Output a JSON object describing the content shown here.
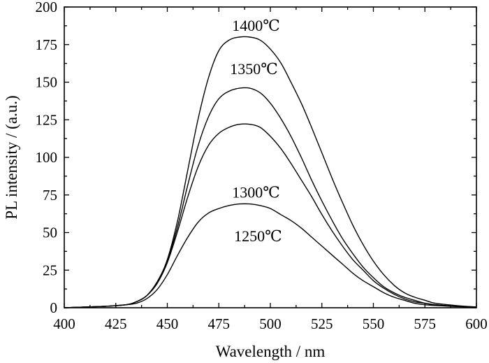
{
  "chart_data": {
    "type": "line",
    "xlabel": "Wavelength / nm",
    "ylabel": "PL intensity / (a.u.)",
    "xlim": [
      400,
      600
    ],
    "ylim": [
      0,
      200
    ],
    "xticks": [
      "400",
      "425",
      "450",
      "475",
      "500",
      "525",
      "550",
      "575",
      "600"
    ],
    "yticks": [
      "0",
      "25",
      "50",
      "75",
      "100",
      "125",
      "150",
      "175",
      "200"
    ],
    "x": [
      400,
      420,
      430,
      435,
      440,
      445,
      450,
      455,
      460,
      465,
      470,
      475,
      480,
      485,
      490,
      495,
      500,
      505,
      510,
      515,
      520,
      525,
      530,
      535,
      540,
      545,
      550,
      555,
      560,
      565,
      570,
      575,
      580,
      590,
      600
    ],
    "series": [
      {
        "name": "1400℃",
        "peak_x": 490,
        "values": [
          0,
          1,
          2,
          4,
          8,
          17,
          32,
          58,
          92,
          126,
          153,
          171,
          178,
          180,
          180,
          178,
          172,
          163,
          150,
          136,
          120,
          103,
          86,
          70,
          55,
          42,
          31,
          22,
          15,
          10,
          7,
          5,
          3,
          1.5,
          0.5
        ]
      },
      {
        "name": "1350℃",
        "peak_x": 489,
        "values": [
          0,
          1,
          2,
          4,
          8,
          17,
          31,
          54,
          82,
          108,
          127,
          139,
          144,
          146,
          146,
          143,
          136,
          126,
          114,
          100,
          85,
          71,
          58,
          46,
          36,
          27,
          20,
          14,
          10,
          7,
          5,
          3,
          2,
          1,
          0.5
        ]
      },
      {
        "name": "1300℃",
        "peak_x": 490,
        "values": [
          0,
          1,
          2,
          4,
          8,
          16,
          30,
          51,
          74,
          94,
          108,
          116,
          120,
          122,
          122,
          120,
          114,
          106,
          96,
          85,
          74,
          62,
          51,
          41,
          32,
          25,
          18,
          13,
          9,
          6,
          4,
          3,
          2,
          1,
          0.5
        ]
      },
      {
        "name": "1250℃",
        "peak_x": 491,
        "values": [
          0,
          1,
          2,
          3,
          6,
          12,
          22,
          35,
          47,
          57,
          63,
          66,
          68,
          69,
          69,
          68,
          66,
          62,
          58,
          53,
          47,
          41,
          35,
          29,
          23,
          18,
          14,
          10,
          7,
          5,
          3,
          2,
          1.5,
          0.8,
          0.3
        ]
      }
    ]
  }
}
